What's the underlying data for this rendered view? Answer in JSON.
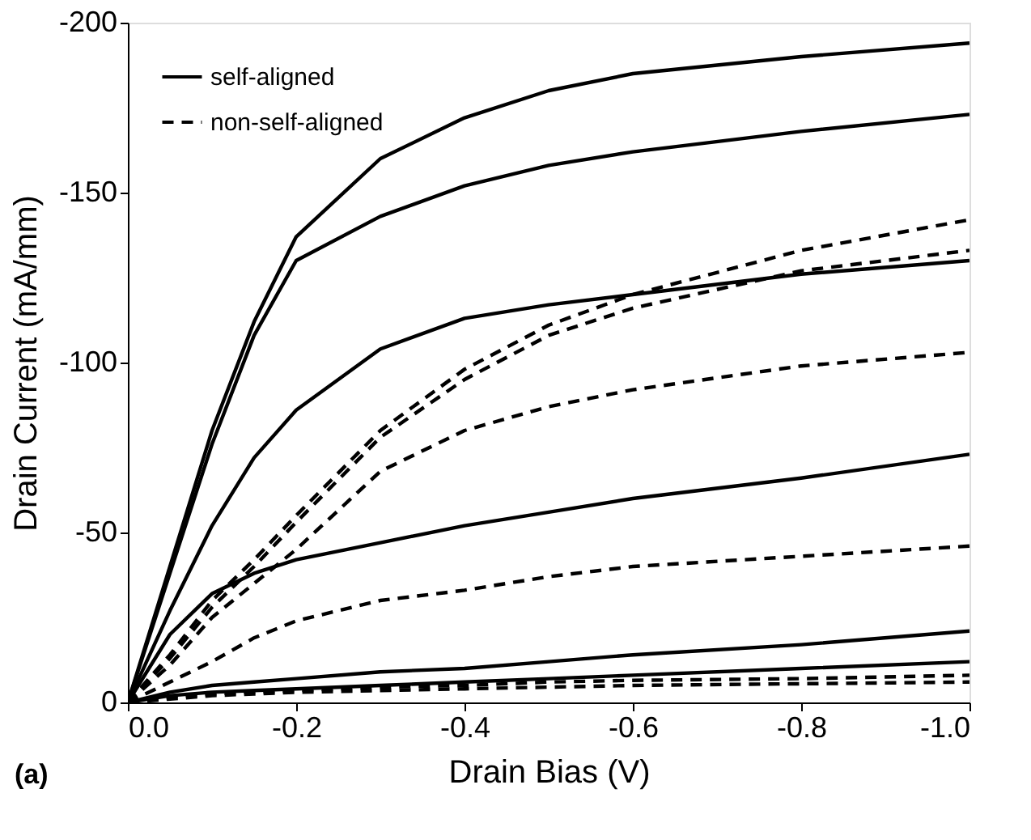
{
  "chart_data": {
    "type": "line",
    "xlabel": "Drain Bias (V)",
    "ylabel": "Drain Current (mA/mm)",
    "xlim": [
      0,
      -1.0
    ],
    "ylim": [
      0,
      -200
    ],
    "xticks": [
      {
        "value": 0,
        "label": "0.0"
      },
      -0.2,
      -0.4,
      -0.6,
      -0.8,
      {
        "value": -1.0,
        "label": "-1.0"
      }
    ],
    "yticks": [
      0,
      -50,
      -100,
      -150,
      -200
    ],
    "x": [
      0,
      -0.05,
      -0.1,
      -0.15,
      -0.2,
      -0.3,
      -0.4,
      -0.5,
      -0.6,
      -0.8,
      -1.0
    ],
    "series": [
      {
        "name": "self-aligned",
        "color": "#000000",
        "line_style": "solid",
        "values": [
          0,
          -40,
          -80,
          -112,
          -137,
          -160,
          -172,
          -180,
          -185,
          -190,
          -194
        ]
      },
      {
        "color": "#000000",
        "line_style": "solid",
        "values": [
          0,
          -38,
          -76,
          -108,
          -130,
          -143,
          -152,
          -158,
          -162,
          -168,
          -173
        ]
      },
      {
        "color": "#000000",
        "line_style": "solid",
        "values": [
          0,
          -27,
          -52,
          -72,
          -86,
          -104,
          -113,
          -117,
          -120,
          -126,
          -130
        ]
      },
      {
        "color": "#000000",
        "line_style": "solid",
        "values": [
          0,
          -20,
          -32,
          -38,
          -42,
          -47,
          -52,
          -56,
          -60,
          -66,
          -73
        ]
      },
      {
        "color": "#000000",
        "line_style": "solid",
        "values": [
          0,
          -3,
          -5,
          -6,
          -7,
          -9,
          -10,
          -12,
          -14,
          -17,
          -21
        ]
      },
      {
        "color": "#000000",
        "line_style": "solid",
        "values": [
          0,
          -2,
          -3,
          -3.5,
          -4,
          -5,
          -6,
          -7,
          -8,
          -10,
          -12
        ]
      },
      {
        "name": "non-self-aligned",
        "color": "#000000",
        "line_style": "dashed",
        "values": [
          0,
          -14,
          -30,
          -42,
          -55,
          -80,
          -98,
          -111,
          -120,
          -133,
          -142
        ]
      },
      {
        "color": "#000000",
        "line_style": "dashed",
        "values": [
          0,
          -13,
          -28,
          -40,
          -53,
          -78,
          -95,
          -108,
          -116,
          -127,
          -133
        ]
      },
      {
        "color": "#000000",
        "line_style": "dashed",
        "values": [
          0,
          -11,
          -25,
          -35,
          -45,
          -68,
          -80,
          -87,
          -92,
          -99,
          -103
        ]
      },
      {
        "color": "#000000",
        "line_style": "dashed",
        "values": [
          0,
          -6,
          -12,
          -19,
          -24,
          -30,
          -33,
          -37,
          -40,
          -43,
          -46
        ]
      },
      {
        "color": "#000000",
        "line_style": "dashed",
        "values": [
          0,
          -1.5,
          -2.5,
          -3,
          -3.5,
          -4.5,
          -5,
          -6,
          -6.5,
          -7,
          -8
        ]
      },
      {
        "color": "#000000",
        "line_style": "dashed",
        "values": [
          0,
          -1,
          -2,
          -2.5,
          -3,
          -3.5,
          -4,
          -4.5,
          -5,
          -5.5,
          -6
        ]
      }
    ],
    "legend": "top left",
    "grid": false,
    "annotations": [
      "(a)"
    ]
  }
}
